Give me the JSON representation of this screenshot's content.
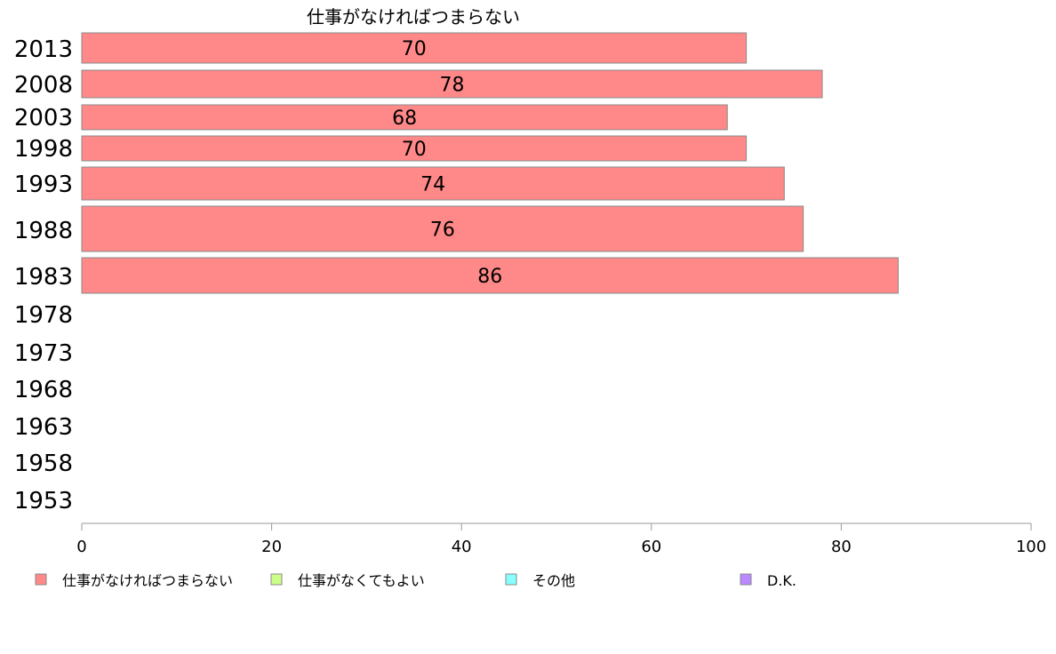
{
  "chart_data": {
    "type": "bar",
    "orientation": "horizontal",
    "stacked": true,
    "categories": [
      "2013",
      "2008",
      "2003",
      "1998",
      "1993",
      "1988",
      "1983",
      "1978",
      "1973",
      "1968",
      "1963",
      "1958",
      "1953"
    ],
    "series": [
      {
        "name": "仕事がなければつまらない",
        "color": "#ff8888",
        "values": [
          70,
          78,
          68,
          70,
          74,
          76,
          86,
          null,
          null,
          null,
          null,
          null,
          null
        ]
      },
      {
        "name": "仕事がなくてもよい",
        "color": "#ccff88",
        "values": [
          null,
          null,
          null,
          null,
          null,
          null,
          null,
          null,
          null,
          null,
          null,
          null,
          null
        ]
      },
      {
        "name": "その他",
        "color": "#88ffff",
        "values": [
          null,
          null,
          null,
          null,
          null,
          null,
          null,
          null,
          null,
          null,
          null,
          null,
          null
        ]
      },
      {
        "name": "D.K.",
        "color": "#bb88ff",
        "values": [
          null,
          null,
          null,
          null,
          null,
          null,
          null,
          null,
          null,
          null,
          null,
          null,
          null
        ]
      }
    ],
    "data_labels": [
      "70",
      "78",
      "68",
      "70",
      "74",
      "76",
      "86"
    ],
    "series_title": "仕事がなければつまらない",
    "xlim": [
      0,
      100
    ],
    "xticks": [
      "0",
      "20",
      "40",
      "60",
      "80",
      "100"
    ],
    "grid": false,
    "legend_position": "bottom"
  }
}
